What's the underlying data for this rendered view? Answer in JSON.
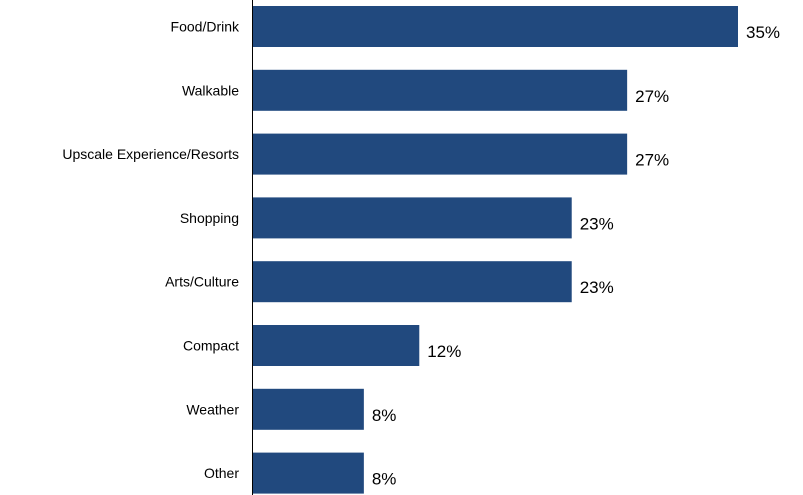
{
  "chart_data": {
    "type": "bar",
    "orientation": "horizontal",
    "categories": [
      "Food/Drink",
      "Walkable",
      "Upscale Experience/Resorts",
      "Shopping",
      "Arts/Culture",
      "Compact",
      "Weather",
      "Other"
    ],
    "values": [
      35,
      27,
      27,
      23,
      23,
      12,
      8,
      8
    ],
    "value_labels": [
      "35%",
      "27%",
      "27%",
      "23%",
      "23%",
      "12%",
      "8%",
      "8%"
    ],
    "unit": "%",
    "xlim": [
      0,
      35
    ],
    "grid": false,
    "bar_color": "#21497E"
  }
}
